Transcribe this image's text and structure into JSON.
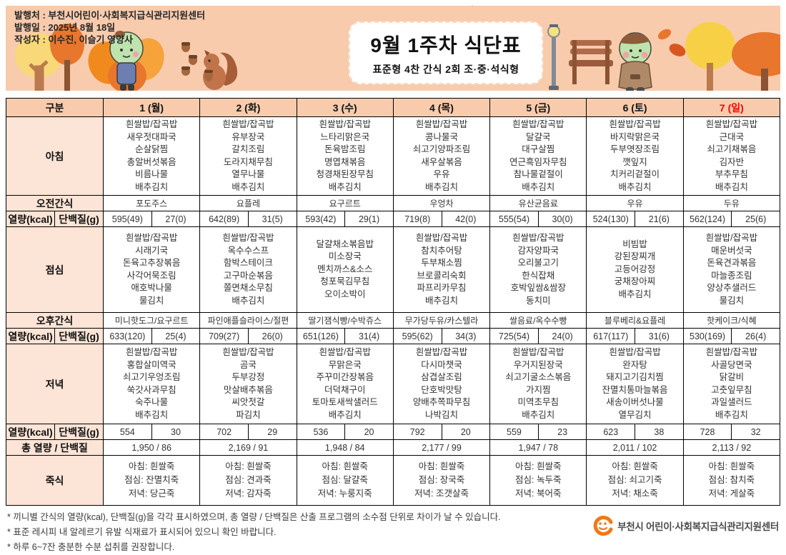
{
  "colors": {
    "band": "#F8CBAD",
    "label_cell": "#FCE4D6",
    "sunday": "#FF0000",
    "logo_orange": "#F07818"
  },
  "header": {
    "info_lines": [
      "발행처 : 부천시어린이·사회복지급식관리지원센터",
      "발행일 : 2025년 8월 18일",
      "작성자 : 이수진, 이슬기 영양사"
    ],
    "stray_mark": "`",
    "title": "9월 1주차 식단표",
    "subtitle": "표준형 4찬 간식 2회 조·중·석식형"
  },
  "table": {
    "corner_label": "구분",
    "day_headers": [
      "1 (월)",
      "2 (화)",
      "3 (수)",
      "4 (목)",
      "5 (금)",
      "6 (토)",
      "7 (일)"
    ],
    "sunday_index": 6,
    "row_labels": {
      "breakfast": "아침",
      "am_snack": "오전간식",
      "kcal": "열량(kcal)",
      "protein": "단백질(g)",
      "lunch": "점심",
      "pm_snack": "오후간식",
      "dinner": "저녁",
      "total": "총 열량 / 단백질",
      "porridge": "죽식"
    },
    "breakfast": [
      [
        "흰쌀밥/잡곡밥",
        "새우젓대파국",
        "순살닭찜",
        "총알버섯볶음",
        "비름나물",
        "배추김치"
      ],
      [
        "흰쌀밥/잡곡밥",
        "유부장국",
        "갈치조림",
        "도라지채무침",
        "열무나물",
        "배추김치"
      ],
      [
        "흰쌀밥/잡곡밥",
        "느타리맑은국",
        "돈육밤조림",
        "명엽채볶음",
        "청경채된장무침",
        "배추김치"
      ],
      [
        "흰쌀밥/잡곡밥",
        "콩나물국",
        "쇠고기양파조림",
        "새우살볶음",
        "우유",
        "배추김치"
      ],
      [
        "흰쌀밥/잡곡밥",
        "달걀국",
        "대구살찜",
        "연근흑임자무침",
        "참나물겉절이",
        "배추김치"
      ],
      [
        "흰쌀밥/잡곡밥",
        "바지락맑은국",
        "두부엿장조림",
        "깻잎지",
        "치커리겉절이",
        "배추김치"
      ],
      [
        "흰쌀밥/잡곡밥",
        "근대국",
        "쇠고기채볶음",
        "김자반",
        "부추무침",
        "배추김치"
      ]
    ],
    "am_snack": [
      "포도주스",
      "요플레",
      "요구르트",
      "우엉차",
      "유산균음료",
      "우유",
      "두유"
    ],
    "breakfast_kcal": [
      [
        "595(49)",
        "27(0)"
      ],
      [
        "642(89)",
        "31(5)"
      ],
      [
        "593(42)",
        "29(1)"
      ],
      [
        "719(8)",
        "42(0)"
      ],
      [
        "555(54)",
        "30(0)"
      ],
      [
        "524(130)",
        "21(6)"
      ],
      [
        "562(124)",
        "25(6)"
      ]
    ],
    "lunch": [
      [
        "흰쌀밥/잡곡밥",
        "시래기국",
        "돈육고추장볶음",
        "사각어묵조림",
        "애호박나물",
        "물김치"
      ],
      [
        "흰쌀밥/잡곡밥",
        "옥수수스프",
        "함박스테이크",
        "고구마순볶음",
        "쫄면채소무침",
        "배추김치"
      ],
      [
        "달걀채소볶음밥",
        "미소장국",
        "멘치까스&소스",
        "청포묵김무침",
        "오이소박이"
      ],
      [
        "흰쌀밥/잡곡밥",
        "참치추어탕",
        "두부채소찜",
        "브로콜리숙회",
        "파프리카무침",
        "배추김치"
      ],
      [
        "흰쌀밥/잡곡밥",
        "감자양파국",
        "오리불고기",
        "한식잡채",
        "호박잎쌈&쌈장",
        "동치미"
      ],
      [
        "비빔밥",
        "강된장찌개",
        "고등어강정",
        "궁채장아찌",
        "배추김치"
      ],
      [
        "흰쌀밥/잡곡밥",
        "매운버섯국",
        "돈육견과볶음",
        "마늘종조림",
        "양상추샐러드",
        "물김치"
      ]
    ],
    "pm_snack": [
      "미니핫도그/요구르트",
      "파인애플슬라이스/절편",
      "딸기잼식빵/수박쥬스",
      "무가당두유/카스텔라",
      "쌀음료/옥수수빵",
      "블루베리&요플레",
      "핫케이크/식혜"
    ],
    "lunch_kcal": [
      [
        "633(120)",
        "25(4)"
      ],
      [
        "709(27)",
        "26(0)"
      ],
      [
        "651(126)",
        "31(4)"
      ],
      [
        "595(62)",
        "34(3)"
      ],
      [
        "725(54)",
        "24(0)"
      ],
      [
        "617(117)",
        "31(6)"
      ],
      [
        "530(169)",
        "26(4)"
      ]
    ],
    "dinner": [
      [
        "흰쌀밥/잡곡밥",
        "홍합살미역국",
        "쇠고기우엉조림",
        "쑥갓사과무침",
        "숙주나물",
        "배추김치"
      ],
      [
        "흰쌀밥/잡곡밥",
        "곰국",
        "두부강정",
        "맛살배추볶음",
        "씨앗젓갈",
        "파김치"
      ],
      [
        "흰쌀밥/잡곡밥",
        "무맑은국",
        "주꾸미간장볶음",
        "더덕채구이",
        "토마토새싹샐러드",
        "배추김치"
      ],
      [
        "흰쌀밥/잡곡밥",
        "다시마챗국",
        "삼겹살조림",
        "단호박맛탕",
        "양배추쪽파무침",
        "나박김치"
      ],
      [
        "흰쌀밥/잡곡밥",
        "우거지된장국",
        "쇠고기굴소스볶음",
        "가지찜",
        "미역초무침",
        "배추김치"
      ],
      [
        "흰쌀밥/잡곡밥",
        "완자탕",
        "돼지고기김치찜",
        "잔멸치통마늘볶음",
        "새송이버섯나물",
        "열무김치"
      ],
      [
        "흰쌀밥/잡곡밥",
        "사골당면국",
        "닭갈비",
        "고춧잎무침",
        "과일샐러드",
        "배추김치"
      ]
    ],
    "dinner_kcal": [
      [
        "554",
        "30"
      ],
      [
        "702",
        "29"
      ],
      [
        "536",
        "20"
      ],
      [
        "792",
        "20"
      ],
      [
        "559",
        "23"
      ],
      [
        "623",
        "38"
      ],
      [
        "728",
        "32"
      ]
    ],
    "totals": [
      "1,950  /  86",
      "2,169  /  91",
      "1,948  /  84",
      "2,177  /  99",
      "1,947  /  78",
      "2,011  /  102",
      "2,113  /  92"
    ],
    "porridge": [
      [
        "아침: 흰쌀죽",
        "점심: 잔멸치죽",
        "저녁: 당근죽"
      ],
      [
        "아침: 흰쌀죽",
        "점심: 견과죽",
        "저녁: 감자죽"
      ],
      [
        "아침: 흰쌀죽",
        "점심: 달걀죽",
        "저녁: 누룽지죽"
      ],
      [
        "아침: 흰쌀죽",
        "점심: 장국죽",
        "저녁: 조갯살죽"
      ],
      [
        "아침: 흰쌀죽",
        "점심: 녹두죽",
        "저녁: 북어죽"
      ],
      [
        "아침: 흰쌀죽",
        "점심: 쇠고기죽",
        "저녁: 채소죽"
      ],
      [
        "아침: 흰쌀죽",
        "점심: 참치죽",
        "저녁: 게살죽"
      ]
    ]
  },
  "notes": [
    "* 끼니별 간식의 열량(kcal), 단백질(g)을 각각 표시하였으며, 총 열량 / 단백질은 산출 프로그램의 소수점 단위로 차이가 날 수 있습니다.",
    "* 표준 레시피 내 알레르기 유발 식재료가 표시되어 있으니 확인 바랍니다.",
    "* 하루 6~7잔 충분한 수분 섭취를 권장합니다."
  ],
  "footer": {
    "logo_text": "부천시 어린이·사회복지급식관리지원센터"
  }
}
